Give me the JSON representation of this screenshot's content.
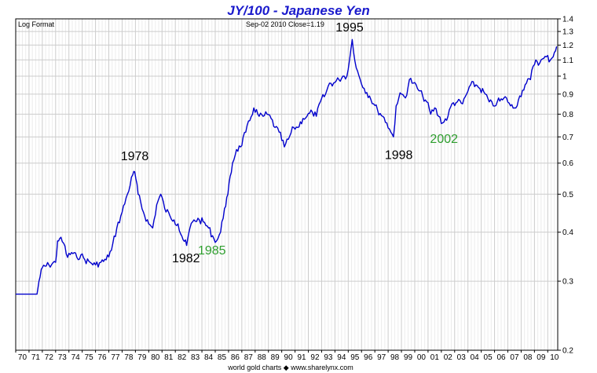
{
  "chart_data": {
    "type": "line",
    "title": "JY/100  -  Japanese Yen",
    "subtitle_left": "Log Format",
    "subtitle_center": "Sep-02  2010   Close=1.19",
    "footer": "world gold charts ◆ www.sharelynx.com",
    "y_scale": "log",
    "ylim": [
      0.2,
      1.4
    ],
    "y_ticks": [
      0.2,
      0.3,
      0.4,
      0.5,
      0.6,
      0.7,
      0.8,
      0.9,
      1,
      1.1,
      1.2,
      1.3,
      1.4
    ],
    "y_tick_labels": [
      "0.2",
      "0.3",
      "0.4",
      "0.5",
      "0.6",
      "0.7",
      "0.8",
      "0.9",
      "1",
      "1.1",
      "1.2",
      "1.3",
      "1.4"
    ],
    "x_ticks": [
      "70",
      "71",
      "72",
      "73",
      "74",
      "75",
      "76",
      "77",
      "78",
      "79",
      "80",
      "81",
      "82",
      "83",
      "84",
      "85",
      "86",
      "87",
      "88",
      "89",
      "90",
      "91",
      "92",
      "93",
      "94",
      "95",
      "96",
      "97",
      "98",
      "99",
      "00",
      "01",
      "02",
      "03",
      "04",
      "05",
      "06",
      "07",
      "08",
      "09",
      "10"
    ],
    "xlim": [
      1970.0,
      2010.75
    ],
    "grid": true,
    "line_color": "#0000cc",
    "series": [
      {
        "x": [
          1970.0,
          1971.0,
          1971.6,
          1971.75,
          1972.0,
          1972.5,
          1973.0,
          1973.15,
          1973.3,
          1973.6,
          1973.9,
          1974.2,
          1974.6,
          1974.9,
          1975.2,
          1975.6,
          1976.0,
          1976.4,
          1976.8,
          1977.2,
          1977.6,
          1978.0,
          1978.4,
          1978.8,
          1978.95,
          1979.2,
          1979.6,
          1980.0,
          1980.3,
          1980.6,
          1980.9,
          1981.2,
          1981.6,
          1981.9,
          1982.2,
          1982.5,
          1982.85,
          1983.1,
          1983.4,
          1983.8,
          1984.1,
          1984.5,
          1984.9,
          1985.1,
          1985.4,
          1985.7,
          1985.95,
          1986.3,
          1986.6,
          1986.9,
          1987.3,
          1987.6,
          1987.9,
          1988.3,
          1988.6,
          1988.9,
          1989.2,
          1989.5,
          1989.8,
          1990.2,
          1990.5,
          1990.9,
          1991.2,
          1991.6,
          1991.9,
          1992.3,
          1992.6,
          1992.9,
          1993.3,
          1993.6,
          1993.9,
          1994.3,
          1994.6,
          1994.9,
          1995.1,
          1995.3,
          1995.6,
          1995.9,
          1996.2,
          1996.6,
          1996.9,
          1997.2,
          1997.6,
          1997.9,
          1998.2,
          1998.4,
          1998.6,
          1998.8,
          1999.0,
          1999.3,
          1999.6,
          1999.9,
          2000.2,
          2000.6,
          2000.9,
          2001.2,
          2001.5,
          2001.8,
          2002.1,
          2002.5,
          2002.8,
          2003.2,
          2003.6,
          2003.9,
          2004.2,
          2004.6,
          2004.9,
          2005.3,
          2005.6,
          2005.9,
          2006.2,
          2006.6,
          2006.9,
          2007.2,
          2007.5,
          2007.8,
          2008.1,
          2008.4,
          2008.7,
          2008.9,
          2009.1,
          2009.4,
          2009.7,
          2009.9,
          2010.2,
          2010.5,
          2010.67
        ],
        "values": [
          0.278,
          0.278,
          0.278,
          0.3,
          0.325,
          0.33,
          0.335,
          0.38,
          0.385,
          0.375,
          0.345,
          0.355,
          0.345,
          0.35,
          0.34,
          0.335,
          0.33,
          0.335,
          0.34,
          0.36,
          0.41,
          0.45,
          0.5,
          0.56,
          0.57,
          0.5,
          0.45,
          0.42,
          0.41,
          0.47,
          0.5,
          0.46,
          0.44,
          0.43,
          0.42,
          0.39,
          0.37,
          0.41,
          0.43,
          0.43,
          0.425,
          0.41,
          0.385,
          0.38,
          0.4,
          0.46,
          0.5,
          0.6,
          0.65,
          0.66,
          0.72,
          0.77,
          0.83,
          0.79,
          0.79,
          0.8,
          0.78,
          0.74,
          0.72,
          0.66,
          0.69,
          0.74,
          0.74,
          0.78,
          0.79,
          0.81,
          0.79,
          0.86,
          0.9,
          0.96,
          0.96,
          0.98,
          1.0,
          1.0,
          1.1,
          1.24,
          1.05,
          0.98,
          0.93,
          0.89,
          0.85,
          0.82,
          0.79,
          0.76,
          0.72,
          0.7,
          0.84,
          0.88,
          0.9,
          0.88,
          0.98,
          0.96,
          0.93,
          0.89,
          0.86,
          0.8,
          0.83,
          0.79,
          0.76,
          0.79,
          0.85,
          0.86,
          0.85,
          0.9,
          0.95,
          0.95,
          0.93,
          0.9,
          0.86,
          0.84,
          0.86,
          0.87,
          0.88,
          0.84,
          0.83,
          0.87,
          0.92,
          0.96,
          0.98,
          1.06,
          1.1,
          1.08,
          1.11,
          1.12,
          1.1,
          1.15,
          1.19
        ]
      }
    ],
    "annotations": [
      {
        "text": "1978",
        "x": 1978.95,
        "y": 0.61,
        "color": "#000000"
      },
      {
        "text": "1982",
        "x": 1982.8,
        "y": 0.335,
        "color": "#000000"
      },
      {
        "text": "1985",
        "x": 1984.75,
        "y": 0.351,
        "color": "#2e9e2e"
      },
      {
        "text": "1995",
        "x": 1995.1,
        "y": 1.3,
        "color": "#000000"
      },
      {
        "text": "1998",
        "x": 1998.8,
        "y": 0.615,
        "color": "#000000"
      },
      {
        "text": "2002",
        "x": 2002.2,
        "y": 0.675,
        "color": "#2e9e2e"
      }
    ]
  }
}
